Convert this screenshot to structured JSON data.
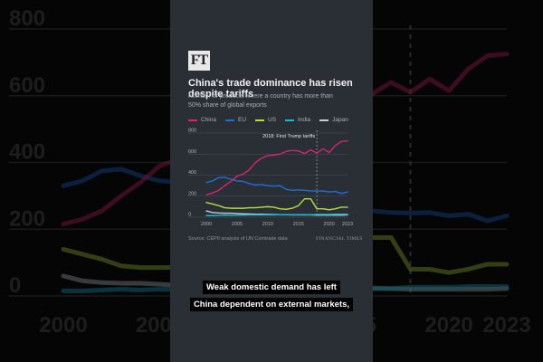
{
  "header": {
    "logo": "FT",
    "title": "China's trade dominance has risen despite tariffs",
    "subtitle": "Number of products where a country has more than 50% share of global exports"
  },
  "footer": {
    "source": "Source: CEPII analysis of UN Comtrade data",
    "publisher": "FINANCIAL TIMES"
  },
  "caption": {
    "line1": "Weak domestic demand has left",
    "line2": "China dependent on external markets,"
  },
  "colors": {
    "panel_bg": "#2a2f36",
    "grid": "#4a5058",
    "text_muted": "#a9aeb5"
  },
  "chart_data": {
    "type": "line",
    "title": "China's trade dominance has risen despite tariffs",
    "subtitle": "Number of products where a country has more than 50% share of global exports",
    "xlabel": "",
    "ylabel": "",
    "x": [
      2000,
      2001,
      2002,
      2003,
      2004,
      2005,
      2006,
      2007,
      2008,
      2009,
      2010,
      2011,
      2012,
      2013,
      2014,
      2015,
      2016,
      2017,
      2018,
      2019,
      2020,
      2021,
      2022,
      2023
    ],
    "x_ticks": [
      2000,
      2005,
      2010,
      2015,
      2020,
      2023
    ],
    "y_ticks": [
      0,
      200,
      400,
      600,
      800
    ],
    "ylim": [
      0,
      800
    ],
    "grid": true,
    "legend_position": "top",
    "annotation": {
      "x": 2018,
      "label": "2018: First Trump tariffs"
    },
    "series": [
      {
        "name": "China",
        "color": "#d6246e",
        "values": [
          215,
          230,
          255,
          300,
          340,
          390,
          410,
          450,
          520,
          560,
          585,
          590,
          600,
          625,
          635,
          630,
          605,
          640,
          610,
          650,
          615,
          680,
          720,
          725
        ]
      },
      {
        "name": "EU",
        "color": "#1f6fd6",
        "values": [
          330,
          345,
          375,
          380,
          360,
          345,
          340,
          320,
          305,
          310,
          300,
          295,
          300,
          265,
          255,
          260,
          255,
          250,
          248,
          250,
          240,
          245,
          225,
          240
        ]
      },
      {
        "name": "US",
        "color": "#b3e03b",
        "values": [
          140,
          125,
          110,
          90,
          85,
          85,
          85,
          90,
          90,
          95,
          100,
          95,
          80,
          75,
          85,
          110,
          175,
          175,
          80,
          80,
          70,
          80,
          95,
          95
        ]
      },
      {
        "name": "India",
        "color": "#19b8d6",
        "values": [
          15,
          15,
          18,
          20,
          18,
          20,
          20,
          22,
          22,
          22,
          22,
          22,
          24,
          24,
          22,
          24,
          24,
          22,
          26,
          26,
          26,
          28,
          28,
          28
        ]
      },
      {
        "name": "Japan",
        "color": "#c9ccd1",
        "values": [
          60,
          45,
          40,
          38,
          38,
          35,
          32,
          30,
          28,
          28,
          26,
          25,
          24,
          23,
          22,
          22,
          22,
          22,
          20,
          20,
          20,
          20,
          20,
          22
        ]
      }
    ]
  }
}
